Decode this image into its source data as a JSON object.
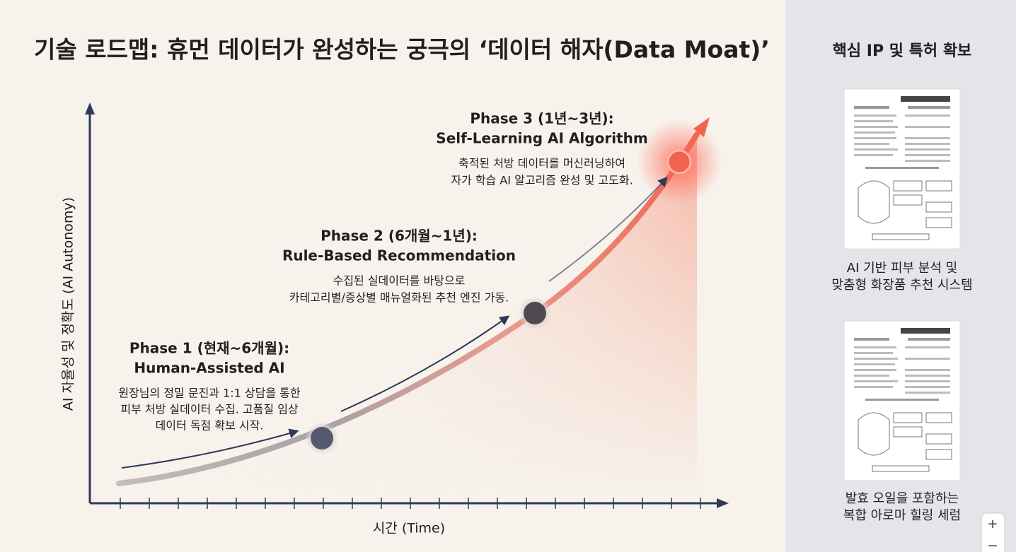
{
  "title": "기술 로드맵: 휴먼 데이터가 완성하는 궁극의 ‘데이터 해자(Data Moat)’",
  "diagram": {
    "y_axis_label": "AI 자율성 및 정확도 (AI Autonomy)",
    "x_axis_label": "시간 (Time)",
    "phases": [
      {
        "title": "Phase 1 (현재~6개월):",
        "subtitle": "Human-Assisted AI",
        "description": [
          "원장님의 정밀 문진과 1:1 상담을 통한",
          "피부 처방 실데이터 수집. 고품질 임상",
          "데이터 독점 확보 시작."
        ]
      },
      {
        "title": "Phase 2 (6개월~1년):",
        "subtitle": "Rule-Based Recommendation",
        "description": [
          "수집된 실데이터를 바탕으로",
          "카테고리별/증상별 매뉴얼화된 추천 엔진 가동."
        ]
      },
      {
        "title": "Phase 3 (1년~3년):",
        "subtitle": "Self-Learning AI Algorithm",
        "description": [
          "축적된 처방 데이터를 머신러닝하여",
          "자가 학습 AI 알고리즘 완성 및 고도화."
        ]
      }
    ]
  },
  "sidebar": {
    "title": "핵심 IP 및 특허 확보",
    "patents": [
      {
        "caption": [
          "AI 기반 피부 분석 및",
          "맞춤형 화장품 추천 시스템"
        ]
      },
      {
        "caption": [
          "발효 오일을 포함하는",
          "복합 아로마 힐링 세럼"
        ]
      }
    ]
  },
  "zoom_controls": [
    "+",
    "−"
  ]
}
